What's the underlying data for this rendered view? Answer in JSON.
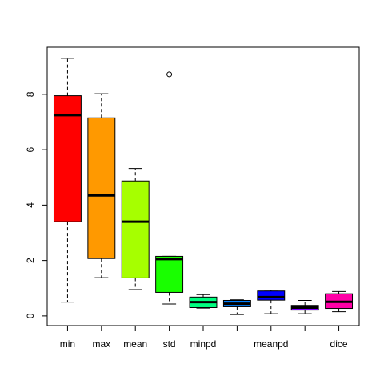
{
  "chart_data": {
    "type": "boxplot",
    "title": "",
    "xlabel": "",
    "ylabel": "",
    "ylim": [
      -0.35,
      9.7
    ],
    "yticks": [
      0,
      2,
      4,
      6,
      8
    ],
    "ytick_labels": [
      "0",
      "2",
      "4",
      "6",
      "8"
    ],
    "grid": false,
    "legend": "none",
    "boxes": [
      {
        "label": "min",
        "color": "#FF0000",
        "lower_whisker": 0.5,
        "q1": 3.4,
        "median": 7.25,
        "q3": 7.95,
        "upper_whisker": 9.3,
        "outliers": []
      },
      {
        "label": "max",
        "color": "#FF9900",
        "lower_whisker": 1.38,
        "q1": 2.07,
        "median": 4.35,
        "q3": 7.15,
        "upper_whisker": 8.02,
        "outliers": []
      },
      {
        "label": "mean",
        "color": "#A6FF00",
        "lower_whisker": 0.95,
        "q1": 1.37,
        "median": 3.4,
        "q3": 4.87,
        "upper_whisker": 5.32,
        "outliers": []
      },
      {
        "label": "std",
        "color": "#19FF00",
        "lower_whisker": 0.43,
        "q1": 0.85,
        "median": 2.05,
        "q3": 2.15,
        "upper_whisker": 2.15,
        "outliers": [
          8.72
        ]
      },
      {
        "label": "minpd",
        "color": "#00FF80",
        "lower_whisker": 0.28,
        "q1": 0.3,
        "median": 0.5,
        "q3": 0.68,
        "upper_whisker": 0.77,
        "outliers": []
      },
      {
        "label": "",
        "color": "#0080FF",
        "lower_whisker": 0.05,
        "q1": 0.33,
        "median": 0.44,
        "q3": 0.56,
        "upper_whisker": 0.58,
        "outliers": []
      },
      {
        "label": "meanpd",
        "color": "#0000FF",
        "lower_whisker": 0.08,
        "q1": 0.57,
        "median": 0.68,
        "q3": 0.9,
        "upper_whisker": 0.93,
        "outliers": []
      },
      {
        "label": "",
        "color": "#7F00FF",
        "lower_whisker": 0.08,
        "q1": 0.21,
        "median": 0.3,
        "q3": 0.38,
        "upper_whisker": 0.56,
        "outliers": []
      },
      {
        "label": "dice",
        "color": "#FF00A6",
        "lower_whisker": 0.15,
        "q1": 0.27,
        "median": 0.51,
        "q3": 0.8,
        "upper_whisker": 0.88,
        "outliers": []
      }
    ]
  }
}
